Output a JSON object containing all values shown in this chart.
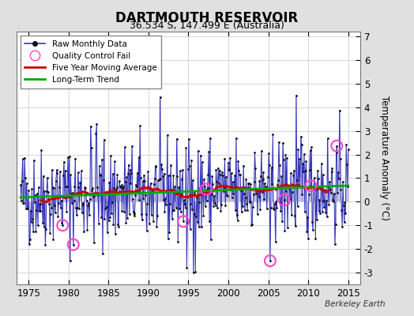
{
  "title": "DARTMOUTH RESERVOIR",
  "subtitle": "36.534 S, 147.499 E (Australia)",
  "ylabel": "Temperature Anomaly (°C)",
  "credit": "Berkeley Earth",
  "xlim": [
    1973.5,
    2016.5
  ],
  "ylim": [
    -3.5,
    7.2
  ],
  "yticks": [
    -3,
    -2,
    -1,
    0,
    1,
    2,
    3,
    4,
    5,
    6,
    7
  ],
  "xticks": [
    1975,
    1980,
    1985,
    1990,
    1995,
    2000,
    2005,
    2010,
    2015
  ],
  "bg_color": "#e0e0e0",
  "plot_bg_color": "#ffffff",
  "line_color": "#3333bb",
  "fill_color": "#8888cc",
  "dot_color": "#111111",
  "ma_color": "#cc0000",
  "trend_color": "#00aa00",
  "qc_color": "#ff44cc",
  "seed": 42,
  "n_months": 492,
  "start_year": 1974.0,
  "end_year": 2015.0
}
